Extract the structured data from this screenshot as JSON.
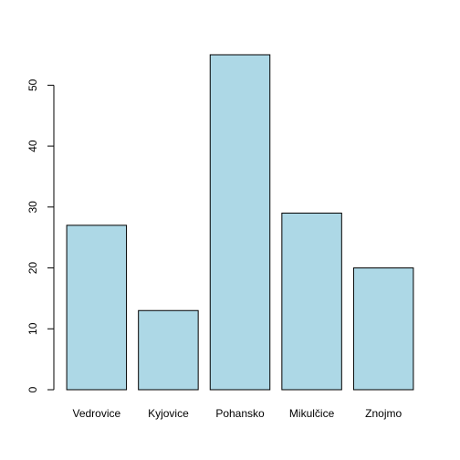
{
  "chart_data": {
    "type": "bar",
    "title": "",
    "xlabel": "",
    "ylabel": "",
    "categories": [
      "Vedrovice",
      "Kyjovice",
      "Pohansko",
      "Mikulčice",
      "Znojmo"
    ],
    "values": [
      27,
      13,
      55,
      29,
      20
    ],
    "ylim": [
      0,
      57.2
    ],
    "yticks": [
      0,
      10,
      20,
      30,
      40,
      50
    ],
    "grid": false,
    "legend": "none",
    "bar_fill": "#add8e6",
    "bar_stroke": "#000000",
    "axis_color": "#000000"
  }
}
